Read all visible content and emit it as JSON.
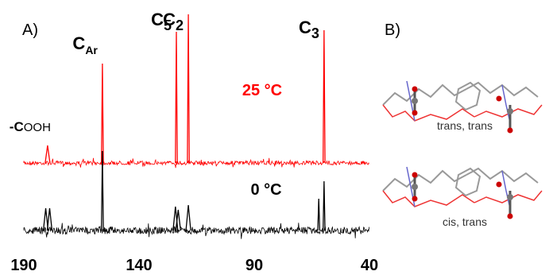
{
  "chart_data": {
    "type": "spectrum",
    "panel_label": "A)",
    "xlim": [
      190,
      40
    ],
    "xticks": [
      190,
      140,
      90,
      40
    ],
    "peak_labels": [
      {
        "x": 179.7,
        "text": "-C",
        "tail": "OOH"
      },
      {
        "x": 155.9,
        "text": "C",
        "sub": "Ar"
      },
      {
        "x": 123.8,
        "text": "C",
        "sub": "5"
      },
      {
        "x": 118.6,
        "text": "C",
        "sub": "2"
      },
      {
        "x": 59.7,
        "text": "C",
        "sub": "3"
      }
    ],
    "series": [
      {
        "name": "25 °C",
        "color": "#ff0000",
        "x": [
          179.7,
          155.9,
          123.8,
          118.6,
          59.7
        ],
        "values": [
          22,
          125,
          165,
          187,
          167
        ]
      },
      {
        "name": "0 °C",
        "color": "#000000",
        "x": [
          180.5,
          178.8,
          155.9,
          124.2,
          123.0,
          118.6,
          62.0,
          59.7
        ],
        "values": [
          28,
          28,
          100,
          30,
          26,
          32,
          40,
          62
        ]
      }
    ]
  },
  "panel_b": {
    "label": "B)",
    "structures": [
      {
        "label": "trans, trans"
      },
      {
        "label": "cis, trans"
      }
    ]
  }
}
